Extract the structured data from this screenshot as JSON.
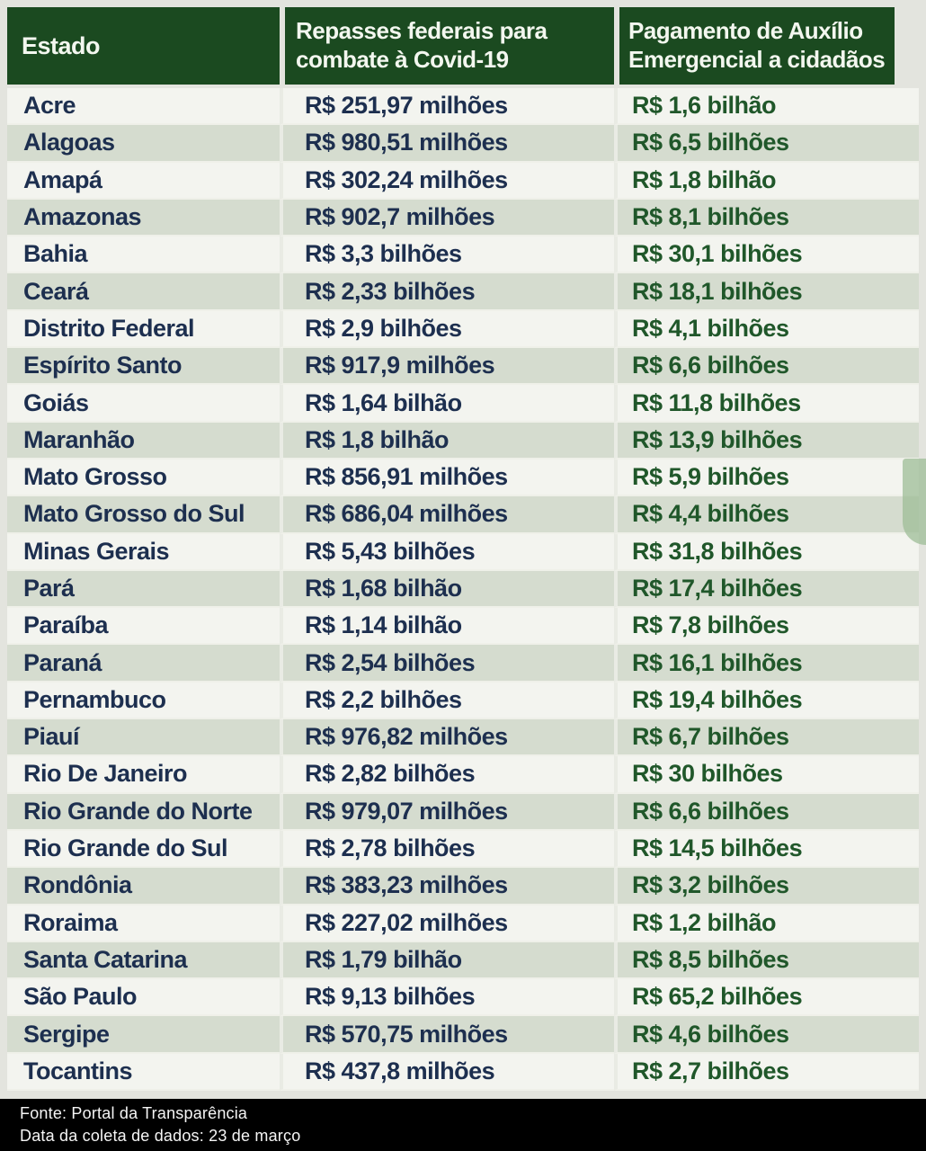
{
  "chart_data": {
    "type": "table",
    "columns": [
      "Estado",
      "Repasses federais para combate à Covid-19",
      "Pagamento de Auxílio Emergencial a cidadãos"
    ],
    "rows": [
      {
        "estado": "Acre",
        "repasses": "R$ 251,97 milhões",
        "auxilio": "R$ 1,6 bilhão"
      },
      {
        "estado": "Alagoas",
        "repasses": "R$ 980,51 milhões",
        "auxilio": "R$ 6,5 bilhões"
      },
      {
        "estado": "Amapá",
        "repasses": "R$ 302,24 milhões",
        "auxilio": "R$ 1,8 bilhão"
      },
      {
        "estado": "Amazonas",
        "repasses": "R$ 902,7 milhões",
        "auxilio": "R$ 8,1 bilhões"
      },
      {
        "estado": "Bahia",
        "repasses": "R$ 3,3 bilhões",
        "auxilio": "R$ 30,1 bilhões"
      },
      {
        "estado": "Ceará",
        "repasses": "R$ 2,33 bilhões",
        "auxilio": "R$ 18,1 bilhões"
      },
      {
        "estado": "Distrito Federal",
        "repasses": "R$ 2,9 bilhões",
        "auxilio": "R$ 4,1 bilhões"
      },
      {
        "estado": "Espírito Santo",
        "repasses": "R$ 917,9 milhões",
        "auxilio": "R$ 6,6 bilhões"
      },
      {
        "estado": "Goiás",
        "repasses": "R$ 1,64 bilhão",
        "auxilio": "R$ 11,8 bilhões"
      },
      {
        "estado": "Maranhão",
        "repasses": "R$ 1,8 bilhão",
        "auxilio": "R$ 13,9 bilhões"
      },
      {
        "estado": "Mato Grosso",
        "repasses": "R$ 856,91 milhões",
        "auxilio": "R$ 5,9 bilhões"
      },
      {
        "estado": "Mato Grosso do Sul",
        "repasses": "R$ 686,04 milhões",
        "auxilio": "R$ 4,4 bilhões"
      },
      {
        "estado": "Minas Gerais",
        "repasses": "R$ 5,43 bilhões",
        "auxilio": "R$ 31,8 bilhões"
      },
      {
        "estado": "Pará",
        "repasses": "R$ 1,68 bilhão",
        "auxilio": "R$ 17,4 bilhões"
      },
      {
        "estado": "Paraíba",
        "repasses": "R$ 1,14 bilhão",
        "auxilio": "R$ 7,8 bilhões"
      },
      {
        "estado": "Paraná",
        "repasses": "R$ 2,54 bilhões",
        "auxilio": "R$ 16,1 bilhões"
      },
      {
        "estado": "Pernambuco",
        "repasses": "R$ 2,2 bilhões",
        "auxilio": "R$ 19,4 bilhões"
      },
      {
        "estado": "Piauí",
        "repasses": "R$ 976,82 milhões",
        "auxilio": "R$ 6,7 bilhões"
      },
      {
        "estado": "Rio De Janeiro",
        "repasses": "R$ 2,82 bilhões",
        "auxilio": "R$ 30 bilhões"
      },
      {
        "estado": "Rio Grande do Norte",
        "repasses": "R$ 979,07 milhões",
        "auxilio": "R$ 6,6 bilhões"
      },
      {
        "estado": "Rio Grande do Sul",
        "repasses": "R$ 2,78 bilhões",
        "auxilio": "R$ 14,5 bilhões"
      },
      {
        "estado": "Rondônia",
        "repasses": "R$ 383,23 milhões",
        "auxilio": "R$ 3,2 bilhões"
      },
      {
        "estado": "Roraima",
        "repasses": "R$ 227,02 milhões",
        "auxilio": "R$ 1,2 bilhão"
      },
      {
        "estado": "Santa Catarina",
        "repasses": "R$ 1,79 bilhão",
        "auxilio": "R$ 8,5 bilhões"
      },
      {
        "estado": "São Paulo",
        "repasses": "R$ 9,13 bilhões",
        "auxilio": "R$ 65,2 bilhões"
      },
      {
        "estado": "Sergipe",
        "repasses": "R$ 570,75 milhões",
        "auxilio": "R$ 4,6 bilhões"
      },
      {
        "estado": "Tocantins",
        "repasses": "R$ 437,8 milhões",
        "auxilio": "R$ 2,7 bilhões"
      }
    ]
  },
  "header": {
    "estado_label": "Estado",
    "repasses_line1": "Repasses federais para",
    "repasses_line2": "combate à Covid-19",
    "auxilio_line1": "Pagamento de Auxílio",
    "auxilio_line2": "Emergencial a cidadãos"
  },
  "footer": {
    "fonte": "Fonte: Portal da Transparência",
    "data_coleta": "Data da coleta de dados: 23 de março"
  },
  "colors": {
    "page_bg": "#e3e4de",
    "header_bg": "#1b4a20",
    "header_text": "#f3f7ef",
    "row_light": "#f3f4ef",
    "row_dark": "#d5dccf",
    "state_text": "#1d2f4f",
    "repasses_text": "#1d2f4f",
    "auxilio_text": "#20572a",
    "footer_bg": "#000000",
    "footer_text": "#f5f5f5"
  }
}
